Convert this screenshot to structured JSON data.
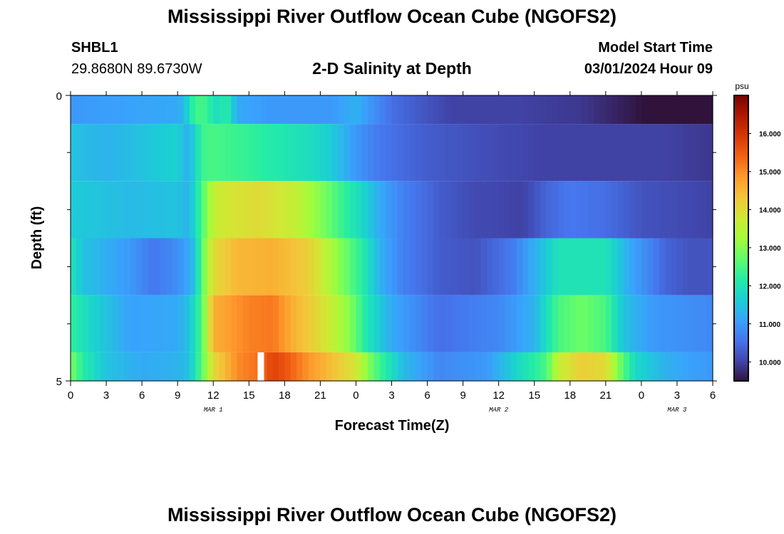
{
  "header": {
    "title": "Mississippi River Outflow Ocean Cube (NGOFS2)",
    "station_name": "SHBL1",
    "station_coords": "29.8680N  89.6730W",
    "subtitle": "2-D Salinity at Depth",
    "model_label": "Model Start Time",
    "model_time": "03/01/2024 Hour 09"
  },
  "footer": {
    "title": "Mississippi River Outflow Ocean Cube (NGOFS2)"
  },
  "chart_data": {
    "type": "heatmap",
    "title": "2-D Salinity at Depth",
    "xlabel": "Forecast Time(Z)",
    "ylabel": "Depth (ft)",
    "colorbar_unit": "psu",
    "x_hours_from_mar1_00z": [
      0,
      54
    ],
    "x_tick_labels": [
      "0",
      "3",
      "6",
      "9",
      "12",
      "15",
      "18",
      "21",
      "0",
      "3",
      "6",
      "9",
      "12",
      "15",
      "18",
      "21",
      "0",
      "3",
      "6"
    ],
    "date_labels": [
      {
        "label": "MAR 1",
        "hour": 12
      },
      {
        "label": "MAR 2",
        "hour": 36
      },
      {
        "label": "MAR 3",
        "hour": 51
      }
    ],
    "ylim": [
      0,
      5
    ],
    "y_tick_labels": [
      "0",
      "5"
    ],
    "y_minor_ticks": [
      1,
      2,
      3,
      4
    ],
    "zlim": [
      9.5,
      17.0
    ],
    "colorbar_ticks": [
      "10.000",
      "11.000",
      "12.000",
      "13.000",
      "14.000",
      "15.000",
      "16.000"
    ],
    "colormap": [
      "#30123b",
      "#4145ab",
      "#4675ed",
      "#39a2fc",
      "#1bcfd4",
      "#24eca6",
      "#61fc6c",
      "#a4fc3b",
      "#d1e834",
      "#f3c63a",
      "#fe9b2d",
      "#f36315",
      "#d93806",
      "#b11901",
      "#7a0402"
    ],
    "layers": [
      {
        "depth_range": [
          0,
          0.5
        ],
        "knots": [
          [
            0,
            11.0
          ],
          [
            9,
            11.2
          ],
          [
            9.6,
            11.4
          ],
          [
            10,
            12.0
          ],
          [
            10.5,
            12.4
          ],
          [
            11,
            12.5
          ],
          [
            11.5,
            12.3
          ],
          [
            12.5,
            11.8
          ],
          [
            13,
            12.3
          ],
          [
            13.5,
            11.8
          ],
          [
            14,
            11.2
          ],
          [
            17,
            11.0
          ],
          [
            22,
            11.0
          ],
          [
            24,
            11.3
          ],
          [
            27,
            10.5
          ],
          [
            32,
            10.0
          ],
          [
            38,
            10.0
          ],
          [
            43,
            9.9
          ],
          [
            47,
            9.6
          ],
          [
            51,
            9.3
          ],
          [
            53,
            9.1
          ],
          [
            54,
            9.0
          ]
        ]
      },
      {
        "depth_range": [
          0.5,
          1.5
        ],
        "knots": [
          [
            0,
            11.5
          ],
          [
            3,
            11.3
          ],
          [
            6,
            11.5
          ],
          [
            9,
            11.7
          ],
          [
            9.8,
            11.3
          ],
          [
            10.5,
            11.7
          ],
          [
            11,
            12.4
          ],
          [
            12,
            12.5
          ],
          [
            15,
            12.3
          ],
          [
            20,
            11.9
          ],
          [
            22,
            11.6
          ],
          [
            24,
            11.0
          ],
          [
            26,
            10.6
          ],
          [
            30,
            10.3
          ],
          [
            36,
            10.1
          ],
          [
            40,
            10.0
          ],
          [
            46,
            10.0
          ],
          [
            50,
            10.0
          ],
          [
            54,
            9.9
          ]
        ]
      },
      {
        "depth_range": [
          1.5,
          2.5
        ],
        "knots": [
          [
            0,
            11.6
          ],
          [
            5,
            11.4
          ],
          [
            9,
            11.5
          ],
          [
            10,
            11.3
          ],
          [
            10.6,
            12.0
          ],
          [
            11,
            12.5
          ],
          [
            11.5,
            13.0
          ],
          [
            12,
            13.6
          ],
          [
            13,
            13.8
          ],
          [
            16,
            14.0
          ],
          [
            19,
            13.6
          ],
          [
            21,
            13.0
          ],
          [
            23,
            12.3
          ],
          [
            24.5,
            11.8
          ],
          [
            26,
            11.2
          ],
          [
            28,
            10.7
          ],
          [
            31,
            10.3
          ],
          [
            34,
            10.1
          ],
          [
            38,
            10.0
          ],
          [
            40,
            10.4
          ],
          [
            42,
            10.6
          ],
          [
            45,
            10.5
          ],
          [
            48,
            10.2
          ],
          [
            51,
            10.1
          ],
          [
            54,
            10.0
          ]
        ]
      },
      {
        "depth_range": [
          2.5,
          3.5
        ],
        "knots": [
          [
            0,
            12.0
          ],
          [
            1,
            11.5
          ],
          [
            5,
            11.0
          ],
          [
            7,
            10.6
          ],
          [
            8.5,
            10.8
          ],
          [
            9.5,
            11.0
          ],
          [
            10.5,
            11.5
          ],
          [
            11,
            12.6
          ],
          [
            12,
            14.0
          ],
          [
            14,
            14.5
          ],
          [
            17,
            14.6
          ],
          [
            20,
            14.2
          ],
          [
            22,
            13.3
          ],
          [
            24.5,
            12.2
          ],
          [
            26,
            11.3
          ],
          [
            28,
            10.7
          ],
          [
            31,
            10.3
          ],
          [
            34,
            10.2
          ],
          [
            37,
            10.6
          ],
          [
            40,
            11.6
          ],
          [
            41,
            12.0
          ],
          [
            45,
            12.0
          ],
          [
            47,
            11.2
          ],
          [
            50,
            10.4
          ],
          [
            52,
            10.2
          ],
          [
            54,
            10.2
          ]
        ]
      },
      {
        "depth_range": [
          3.5,
          4.5
        ],
        "knots": [
          [
            0,
            12.3
          ],
          [
            1.5,
            11.8
          ],
          [
            5,
            11.1
          ],
          [
            9,
            11.2
          ],
          [
            10,
            11.5
          ],
          [
            11,
            12.5
          ],
          [
            12,
            14.6
          ],
          [
            15,
            15.1
          ],
          [
            17,
            15.2
          ],
          [
            19,
            14.5
          ],
          [
            21,
            14.0
          ],
          [
            23.5,
            13.0
          ],
          [
            25,
            12.0
          ],
          [
            27,
            11.2
          ],
          [
            31,
            10.5
          ],
          [
            36,
            10.8
          ],
          [
            39,
            11.3
          ],
          [
            41,
            12.5
          ],
          [
            43,
            12.8
          ],
          [
            45,
            12.5
          ],
          [
            46.5,
            11.5
          ],
          [
            49,
            11.0
          ],
          [
            54,
            10.8
          ]
        ]
      },
      {
        "depth_range": [
          4.5,
          5
        ],
        "knots": [
          [
            0,
            12.9
          ],
          [
            1,
            12.2
          ],
          [
            3,
            11.5
          ],
          [
            6,
            11.2
          ],
          [
            9,
            11.3
          ],
          [
            10,
            11.5
          ],
          [
            11,
            12.6
          ],
          [
            12,
            14.0
          ],
          [
            14,
            15.0
          ],
          [
            16,
            15.3
          ],
          [
            17,
            15.8
          ],
          [
            18,
            15.6
          ],
          [
            20,
            14.9
          ],
          [
            22,
            14.4
          ],
          [
            24,
            13.8
          ],
          [
            25,
            13.0
          ],
          [
            26,
            12.4
          ],
          [
            28,
            11.4
          ],
          [
            31,
            10.8
          ],
          [
            35,
            11.0
          ],
          [
            37,
            11.6
          ],
          [
            40,
            12.5
          ],
          [
            41,
            13.6
          ],
          [
            43,
            14.2
          ],
          [
            45,
            14.0
          ],
          [
            46,
            13.0
          ],
          [
            47.5,
            11.8
          ],
          [
            50,
            11.3
          ],
          [
            52,
            11.1
          ],
          [
            54,
            11.0
          ]
        ]
      }
    ],
    "missing_cells": [
      {
        "hour": 16,
        "layer": 5
      }
    ]
  }
}
